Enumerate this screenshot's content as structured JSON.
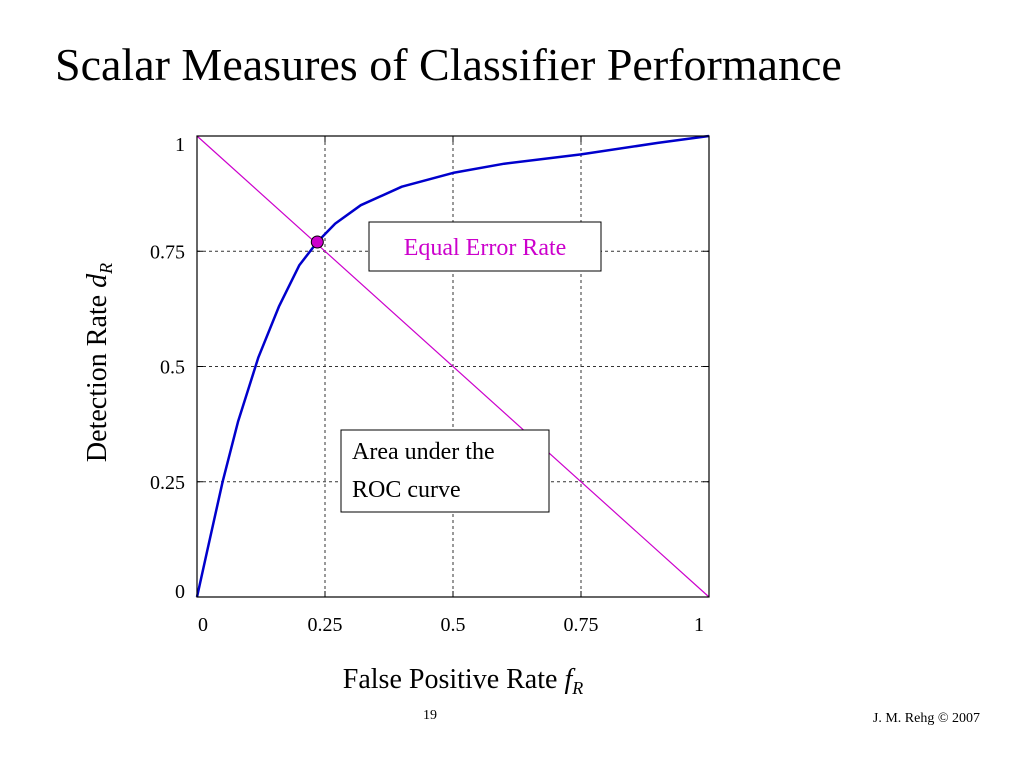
{
  "slide": {
    "title": "Scalar Measures of Classifier Performance",
    "number": "19",
    "credit": "J. M. Rehg © 2007"
  },
  "chart_data": {
    "type": "line",
    "xlabel": "False Positive Rate",
    "xlabel_var": "f",
    "xlabel_sub": "R",
    "ylabel": "Detection Rate",
    "ylabel_var": "d",
    "ylabel_sub": "R",
    "xlim": [
      0,
      1
    ],
    "ylim": [
      0,
      1
    ],
    "xticks": [
      0,
      0.25,
      0.5,
      0.75,
      1
    ],
    "yticks": [
      0,
      0.25,
      0.5,
      0.75,
      1
    ],
    "xtick_labels": [
      "0",
      "0.25",
      "0.5",
      "0.75",
      "1"
    ],
    "ytick_labels": [
      "0",
      "0.25",
      "0.5",
      "0.75",
      "1"
    ],
    "grid": true,
    "series": [
      {
        "color": "#0000cc",
        "x": [
          0,
          0.02,
          0.05,
          0.08,
          0.12,
          0.16,
          0.2,
          0.235,
          0.27,
          0.32,
          0.4,
          0.5,
          0.6,
          0.75,
          0.9,
          1.0
        ],
        "y": [
          0,
          0.1,
          0.25,
          0.38,
          0.52,
          0.63,
          0.72,
          0.77,
          0.81,
          0.85,
          0.89,
          0.92,
          0.94,
          0.96,
          0.985,
          1.0
        ]
      },
      {
        "color": "#cc00cc",
        "x": [
          0,
          1
        ],
        "y": [
          1,
          0
        ]
      }
    ],
    "marker": {
      "x": 0.235,
      "y": 0.77,
      "color": "#cc00cc"
    },
    "annotations": [
      {
        "text": "Equal Error Rate",
        "color": "#cc00cc"
      },
      {
        "lines": [
          "Area under the",
          "ROC curve"
        ],
        "color": "#000000"
      }
    ]
  }
}
